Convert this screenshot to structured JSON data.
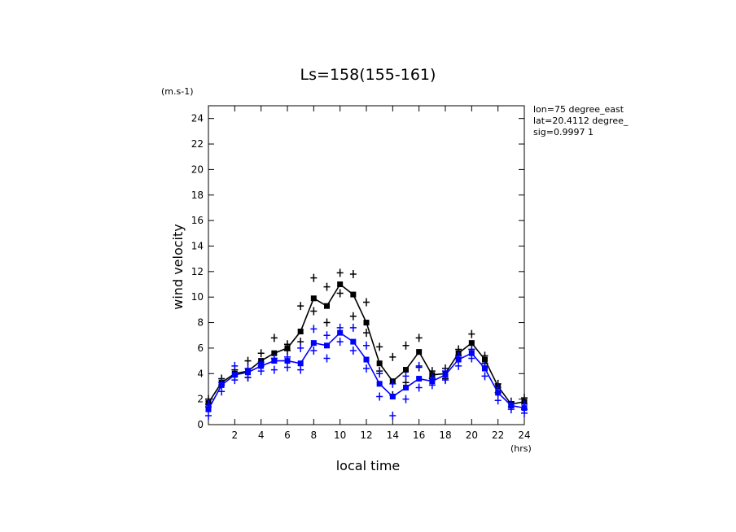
{
  "chart_data": {
    "type": "line",
    "title": "Ls=158(155-161)",
    "y_unit": "(m.s-1)",
    "x_unit": "(hrs)",
    "ylabel": "wind velocity",
    "xlabel": "local time",
    "info": [
      "lon=75 degree_east",
      "lat=20.4112 degree_",
      "sig=0.9997 1"
    ],
    "x": [
      0,
      1,
      2,
      3,
      4,
      5,
      6,
      7,
      8,
      9,
      10,
      11,
      12,
      13,
      14,
      15,
      16,
      17,
      18,
      19,
      20,
      21,
      22,
      23,
      24
    ],
    "xlim": [
      0,
      24
    ],
    "xticks": [
      2,
      4,
      6,
      8,
      10,
      12,
      14,
      16,
      18,
      20,
      22,
      24
    ],
    "ylim": [
      0,
      25
    ],
    "yticks": [
      0,
      2,
      4,
      6,
      8,
      10,
      12,
      14,
      16,
      18,
      20,
      22,
      24
    ],
    "series": [
      {
        "color": "#000000",
        "values": [
          1.7,
          3.3,
          4.0,
          4.2,
          5.0,
          5.6,
          6.0,
          7.3,
          9.9,
          9.3,
          11.0,
          10.2,
          8.0,
          4.8,
          3.4,
          4.3,
          5.7,
          3.9,
          4.0,
          5.6,
          6.4,
          5.1,
          3.0,
          1.6,
          1.8
        ],
        "low": [
          1.4,
          3.1,
          3.8,
          3.7,
          4.6,
          5.2,
          5.8,
          6.5,
          8.9,
          8.0,
          10.3,
          8.5,
          7.2,
          4.2,
          2.3,
          3.3,
          4.5,
          3.6,
          3.6,
          5.4,
          5.9,
          4.8,
          2.5,
          1.4,
          1.2
        ],
        "high": [
          2.0,
          3.6,
          4.3,
          5.0,
          5.6,
          6.8,
          6.3,
          9.3,
          11.5,
          10.8,
          11.9,
          11.8,
          9.6,
          6.1,
          5.3,
          6.2,
          6.8,
          4.2,
          4.4,
          5.9,
          7.1,
          5.4,
          3.2,
          1.8,
          2.1
        ]
      },
      {
        "color": "#0000ff",
        "values": [
          1.2,
          3.1,
          3.9,
          4.1,
          4.6,
          5.0,
          5.0,
          4.8,
          6.4,
          6.2,
          7.2,
          6.5,
          5.1,
          3.2,
          2.2,
          2.9,
          3.6,
          3.4,
          3.9,
          5.1,
          5.6,
          4.4,
          2.5,
          1.5,
          1.3
        ],
        "low": [
          0.7,
          2.6,
          3.5,
          3.7,
          4.2,
          4.3,
          4.5,
          4.3,
          5.8,
          5.2,
          6.5,
          5.8,
          4.4,
          2.2,
          0.7,
          2.0,
          2.9,
          3.1,
          3.5,
          4.6,
          5.2,
          3.8,
          1.9,
          1.2,
          0.9
        ],
        "high": [
          1.6,
          3.3,
          4.6,
          4.4,
          4.9,
          5.2,
          5.3,
          6.0,
          7.5,
          7.0,
          7.6,
          7.6,
          6.2,
          4.0,
          3.2,
          3.8,
          4.6,
          3.7,
          4.2,
          5.4,
          5.9,
          4.6,
          2.9,
          1.7,
          1.6
        ]
      }
    ]
  }
}
